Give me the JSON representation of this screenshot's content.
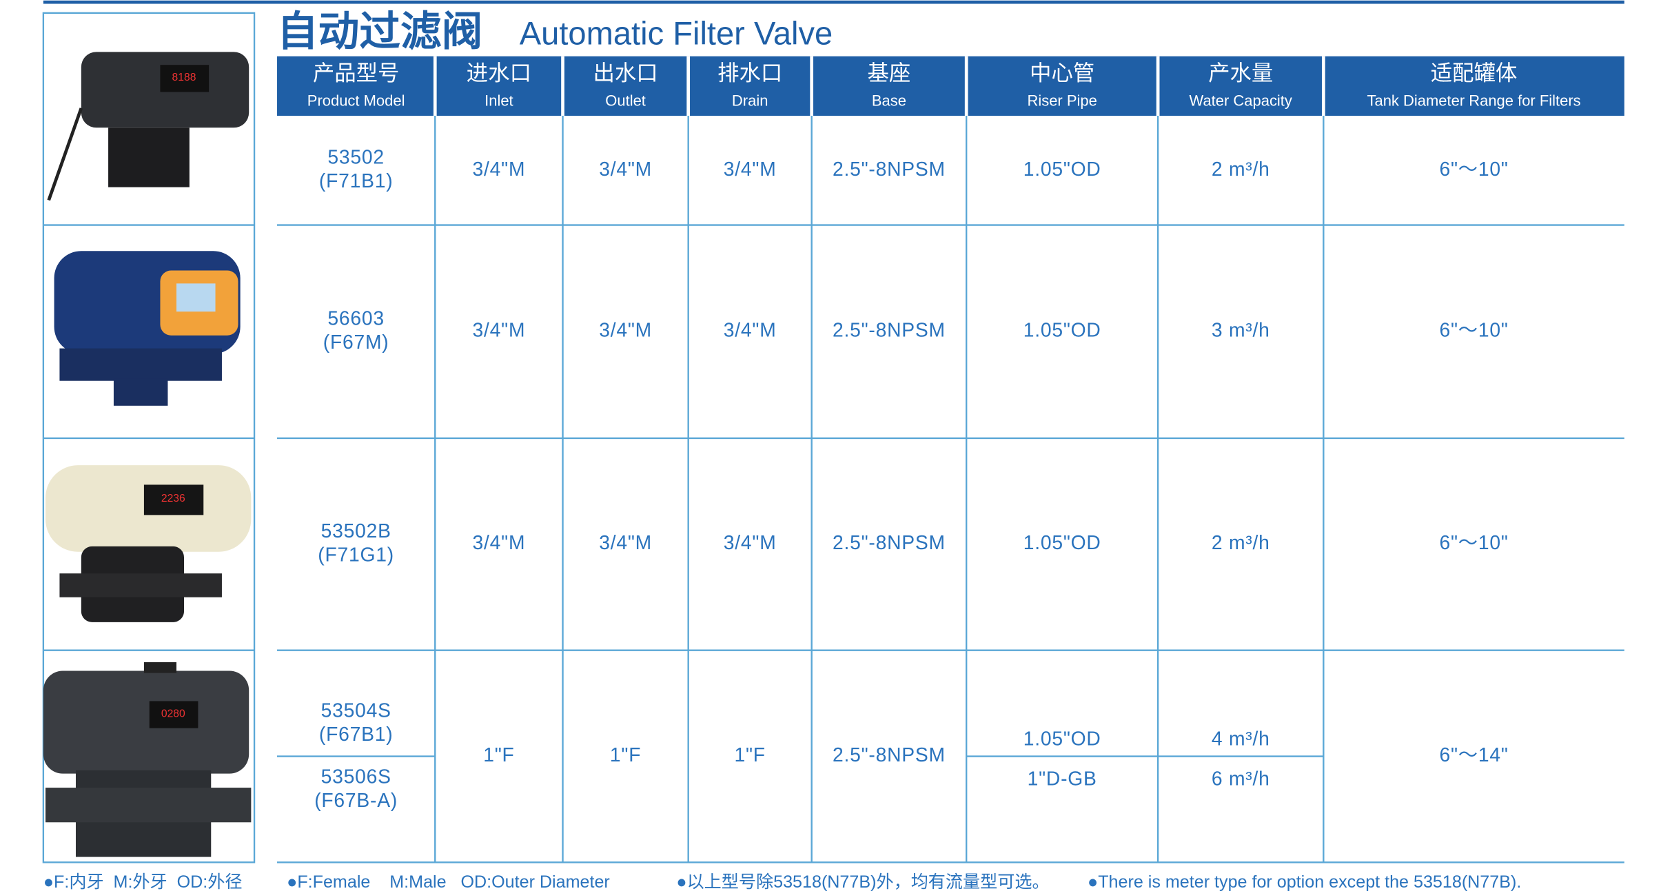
{
  "header": {
    "title_cn": "自动过滤阀",
    "title_en": "Automatic Filter Valve"
  },
  "table": {
    "columns": [
      {
        "cn": "产品型号",
        "en": "Product Model"
      },
      {
        "cn": "进水口",
        "en": "Inlet"
      },
      {
        "cn": "出水口",
        "en": "Outlet"
      },
      {
        "cn": "排水口",
        "en": "Drain"
      },
      {
        "cn": "基座",
        "en": "Base"
      },
      {
        "cn": "中心管",
        "en": "Riser Pipe"
      },
      {
        "cn": "产水量",
        "en": "Water Capacity"
      },
      {
        "cn": "适配罐体",
        "en": "Tank Diameter Range for Filters"
      }
    ],
    "rows": [
      {
        "models": [
          {
            "number": "53502",
            "code": "(F71B1)"
          }
        ],
        "inlet": "3/4\"M",
        "outlet": "3/4\"M",
        "drain": "3/4\"M",
        "base": "2.5\"-8NPSM",
        "riser": [
          "1.05\"OD"
        ],
        "capacity": [
          "2 m³/h"
        ],
        "tank": "6\"～10\""
      },
      {
        "models": [
          {
            "number": "56603",
            "code": "(F67M)"
          }
        ],
        "inlet": "3/4\"M",
        "outlet": "3/4\"M",
        "drain": "3/4\"M",
        "base": "2.5\"-8NPSM",
        "riser": [
          "1.05\"OD"
        ],
        "capacity": [
          "3 m³/h"
        ],
        "tank": "6\"～10\""
      },
      {
        "models": [
          {
            "number": "53502B",
            "code": "(F71G1)"
          }
        ],
        "inlet": "3/4\"M",
        "outlet": "3/4\"M",
        "drain": "3/4\"M",
        "base": "2.5\"-8NPSM",
        "riser": [
          "1.05\"OD"
        ],
        "capacity": [
          "2 m³/h"
        ],
        "tank": "6\"～10\""
      },
      {
        "models": [
          {
            "number": "53504S",
            "code": "(F67B1)"
          },
          {
            "number": "53506S",
            "code": "(F67B-A)"
          }
        ],
        "inlet": "1\"F",
        "outlet": "1\"F",
        "drain": "1\"F",
        "base": "2.5\"-8NPSM",
        "riser": [
          "1.05\"OD",
          "1\"D-GB"
        ],
        "capacity": [
          "4 m³/h",
          "6 m³/h"
        ],
        "tank": "6\"～14\""
      }
    ]
  },
  "notes": [
    "●F:内牙  M:外牙  OD:外径",
    "●F:Female    M:Male   OD:Outer Diameter",
    "●以上型号除53518(N77B)外，均有流量型可选。",
    "●There is meter type for option except the 53518(N77B)."
  ]
}
